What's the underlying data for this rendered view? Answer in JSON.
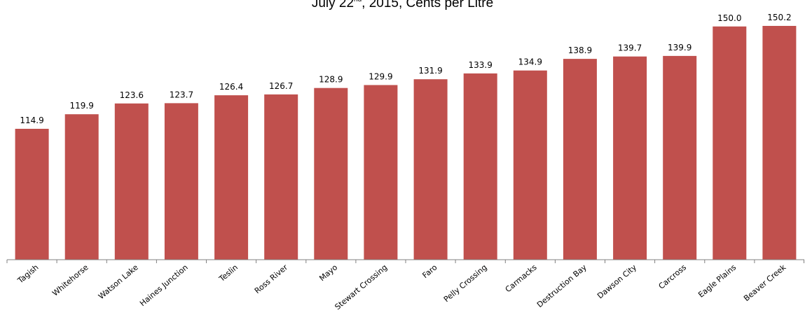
{
  "title": {
    "prefix": "July 22",
    "superscript": "nd",
    "suffix": ", 2015, Cents per Litre"
  },
  "chart_data": {
    "type": "bar",
    "title": "July 22nd, 2015, Cents per Litre",
    "xlabel": "",
    "ylabel": "",
    "categories": [
      "Tagish",
      "Whitehorse",
      "Watson Lake",
      "Haines Junction",
      "Teslin",
      "Ross River",
      "Mayo",
      "Stewart Crossing",
      "Faro",
      "Pelly Crossing",
      "Carmacks",
      "Destruction Bay",
      "Dawson City",
      "Carcross",
      "Eagle Plains",
      "Beaver Creek"
    ],
    "values": [
      114.9,
      119.9,
      123.6,
      123.7,
      126.4,
      126.7,
      128.9,
      129.9,
      131.9,
      133.9,
      134.9,
      138.9,
      139.7,
      139.9,
      150.0,
      150.2
    ],
    "data_labels": [
      "114.9",
      "119.9",
      "123.6",
      "123.7",
      "126.4",
      "126.7",
      "128.9",
      "129.9",
      "131.9",
      "133.9",
      "134.9",
      "138.9",
      "139.7",
      "139.9",
      "150.0",
      "150.2"
    ],
    "ylim": [
      70,
      150.2
    ],
    "bar_color": "#C0504D",
    "grid": false,
    "legend": "none"
  }
}
